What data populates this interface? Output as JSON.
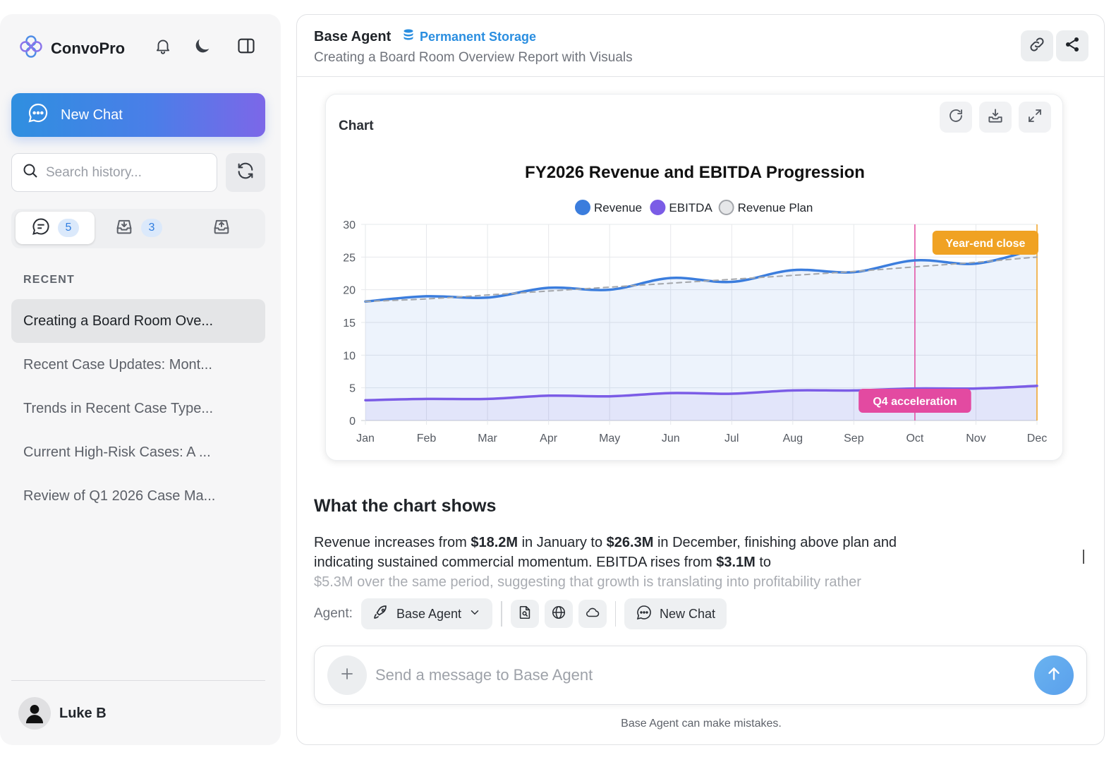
{
  "sidebar": {
    "brand": "ConvoPro",
    "new_chat_label": "New Chat",
    "search_placeholder": "Search history...",
    "tabs": [
      {
        "icon": "chat-icon",
        "count": "5"
      },
      {
        "icon": "inbox-download-icon",
        "count": "3"
      },
      {
        "icon": "inbox-upload-icon",
        "count": ""
      }
    ],
    "recent_label": "RECENT",
    "history": [
      "Creating a Board Room Ove...",
      "Recent Case Updates: Mont...",
      "Trends in Recent Case Type...",
      "Current High-Risk Cases: A ...",
      "Review of Q1 2026 Case Ma..."
    ],
    "user_name": "Luke B"
  },
  "header": {
    "agent_title": "Base Agent",
    "storage_label": "Permanent Storage",
    "subtitle": "Creating a Board Room Overview Report with Visuals"
  },
  "card": {
    "title": "Chart"
  },
  "chart_data": {
    "type": "line",
    "title": "FY2026 Revenue and EBITDA Progression",
    "categories": [
      "Jan",
      "Feb",
      "Mar",
      "Apr",
      "May",
      "Jun",
      "Jul",
      "Aug",
      "Sep",
      "Oct",
      "Nov",
      "Dec"
    ],
    "series": [
      {
        "name": "Revenue",
        "color": "#3b7ddd",
        "filled": true,
        "values": [
          18.2,
          19.0,
          18.8,
          20.3,
          20.0,
          21.8,
          21.2,
          23.0,
          22.7,
          24.5,
          24.0,
          26.3
        ]
      },
      {
        "name": "EBITDA",
        "color": "#7b5ce6",
        "filled": true,
        "values": [
          3.1,
          3.3,
          3.3,
          3.8,
          3.7,
          4.2,
          4.1,
          4.6,
          4.6,
          4.9,
          4.9,
          5.3
        ]
      },
      {
        "name": "Revenue Plan",
        "color": "#a3a6ab",
        "dashed": true,
        "values": [
          18.2,
          18.6,
          19.2,
          19.8,
          20.4,
          21.0,
          21.6,
          22.2,
          22.8,
          23.5,
          24.2,
          25.0
        ]
      }
    ],
    "ylim": [
      0,
      30
    ],
    "yticks": [
      0,
      5,
      10,
      15,
      20,
      25,
      30
    ],
    "grid": true,
    "legend": "top-center",
    "annotations": [
      {
        "label": "Q4 acceleration",
        "x": "Oct",
        "color": "#e34aa1"
      },
      {
        "label": "Year-end close",
        "x": "Dec",
        "color": "#f0a223"
      }
    ]
  },
  "summary": {
    "heading": "What the chart shows",
    "p1": "Revenue increases from ",
    "v1": "$18.2M",
    "p2": " in January to ",
    "v2": "$26.3M",
    "p3": " in December, finishing above plan and indicating sustained commercial momentum. EBITDA rises from ",
    "v3": "$3.1M",
    "p4": " to",
    "faded": "$5.3M over the same period, suggesting that growth is translating into profitability rather"
  },
  "toolbar": {
    "agent_label": "Agent:",
    "agent_value": "Base Agent",
    "new_chat_label": "New Chat"
  },
  "composer": {
    "placeholder": "Send a message to Base Agent",
    "disclaimer": "Base Agent can make mistakes."
  }
}
